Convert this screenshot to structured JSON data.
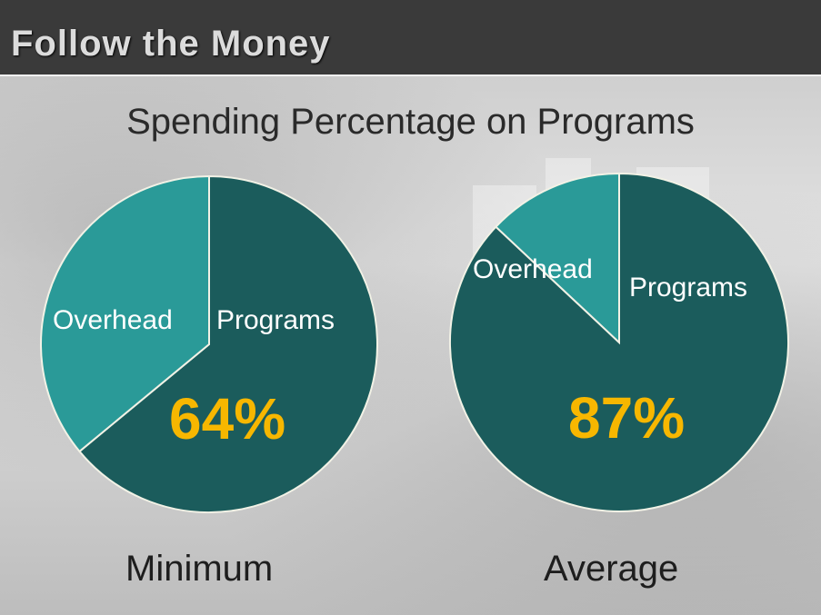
{
  "header": {
    "title": "Follow the Money"
  },
  "chart_data": {
    "type": "pie",
    "title": "Spending Percentage on Programs",
    "colors": {
      "programs": "#1b5c5c",
      "overhead": "#2a9a98",
      "percent_label": "#f7b700"
    },
    "charts": [
      {
        "caption": "Minimum",
        "slices": [
          {
            "label": "Programs",
            "value": 64
          },
          {
            "label": "Overhead",
            "value": 36
          }
        ],
        "highlight": "64%"
      },
      {
        "caption": "Average",
        "slices": [
          {
            "label": "Programs",
            "value": 87
          },
          {
            "label": "Overhead",
            "value": 13
          }
        ],
        "highlight": "87%"
      }
    ]
  }
}
